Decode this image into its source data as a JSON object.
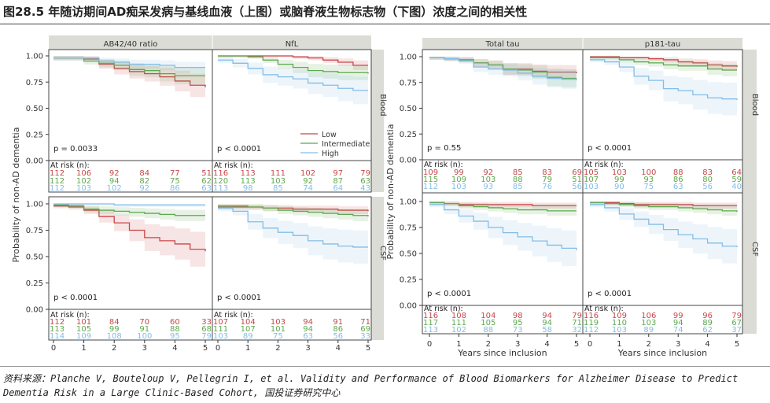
{
  "title": "图28.5 年随访期间AD痴呆发病与基线血液（上图）或脑脊液生物标志物（下图）浓度之间的相关性",
  "source": "资料来源：Planche V, Bouteloup V, Pellegrin I, et al. Validity and Performance of Blood Biomarkers for Alzheimer Disease to Predict Dementia Risk in a Large Clinic-Based Cohort, 国投证券研究中心",
  "colors": {
    "Low": "#c8474a",
    "Intermediate": "#5ea84e",
    "High": "#83bde6"
  },
  "common": {
    "ylabel": "Probability of non-AD dementia",
    "xlabel": "Years since inclusion",
    "at_risk_label": "At risk (n):",
    "yticks": [
      "0.00",
      "0.25",
      "0.50",
      "0.75",
      "1.00"
    ],
    "xticks": [
      "0",
      "1",
      "2",
      "3",
      "4",
      "5"
    ],
    "legend": [
      "Low",
      "Intermediate",
      "High"
    ],
    "row_strips": [
      "Blood",
      "CSF"
    ]
  },
  "chart_data": [
    {
      "type": "line",
      "title": "AB42/40 ratio",
      "sample": "Blood",
      "p": "p = 0.0033",
      "x": [
        0,
        0.5,
        1,
        1.5,
        2,
        2.5,
        3,
        3.5,
        4,
        4.5,
        5
      ],
      "ylim": [
        0,
        1
      ],
      "series": [
        {
          "name": "Low",
          "values": [
            0.98,
            0.98,
            0.97,
            0.92,
            0.88,
            0.85,
            0.83,
            0.8,
            0.76,
            0.72,
            0.7
          ],
          "at_risk": [
            "112",
            "106",
            "92",
            "84",
            "77",
            "51"
          ]
        },
        {
          "name": "Intermediate",
          "values": [
            0.98,
            0.98,
            0.95,
            0.93,
            0.91,
            0.87,
            0.86,
            0.83,
            0.81,
            0.81,
            0.81
          ],
          "at_risk": [
            "112",
            "102",
            "94",
            "82",
            "75",
            "62"
          ]
        },
        {
          "name": "High",
          "values": [
            0.98,
            0.98,
            0.98,
            0.95,
            0.94,
            0.92,
            0.92,
            0.91,
            0.89,
            0.89,
            0.89
          ],
          "at_risk": [
            "112",
            "103",
            "102",
            "92",
            "86",
            "63"
          ]
        }
      ]
    },
    {
      "type": "line",
      "title": "NfL",
      "sample": "Blood",
      "p": "p < 0.0001",
      "x": [
        0,
        0.5,
        1,
        1.5,
        2,
        2.5,
        3,
        3.5,
        4,
        4.5,
        5
      ],
      "ylim": [
        0,
        1
      ],
      "series": [
        {
          "name": "Low",
          "values": [
            1,
            1,
            1,
            1,
            1,
            0.99,
            0.98,
            0.96,
            0.94,
            0.91,
            0.91
          ],
          "at_risk": [
            "116",
            "113",
            "111",
            "102",
            "97",
            "79"
          ]
        },
        {
          "name": "Intermediate",
          "values": [
            1,
            1,
            0.99,
            0.96,
            0.92,
            0.89,
            0.86,
            0.85,
            0.84,
            0.84,
            0.83
          ],
          "at_risk": [
            "120",
            "113",
            "103",
            "92",
            "87",
            "63"
          ]
        },
        {
          "name": "High",
          "values": [
            0.96,
            0.93,
            0.88,
            0.82,
            0.8,
            0.78,
            0.74,
            0.72,
            0.69,
            0.67,
            0.67
          ],
          "at_risk": [
            "113",
            "98",
            "85",
            "74",
            "64",
            "43"
          ]
        }
      ]
    },
    {
      "type": "line",
      "title": "Total tau",
      "sample": "Blood",
      "p": "p = 0.55",
      "x": [
        0,
        0.5,
        1,
        1.5,
        2,
        2.5,
        3,
        3.5,
        4,
        4.5,
        5
      ],
      "ylim": [
        0,
        1
      ],
      "series": [
        {
          "name": "Low",
          "values": [
            0.99,
            0.98,
            0.97,
            0.94,
            0.92,
            0.88,
            0.88,
            0.86,
            0.85,
            0.85,
            0.84
          ],
          "at_risk": [
            "109",
            "99",
            "92",
            "85",
            "83",
            "69"
          ]
        },
        {
          "name": "Intermediate",
          "values": [
            0.99,
            0.98,
            0.97,
            0.94,
            0.92,
            0.88,
            0.87,
            0.85,
            0.8,
            0.79,
            0.79
          ],
          "at_risk": [
            "115",
            "109",
            "103",
            "88",
            "79",
            "51"
          ]
        },
        {
          "name": "High",
          "values": [
            0.99,
            0.98,
            0.96,
            0.9,
            0.88,
            0.87,
            0.84,
            0.81,
            0.79,
            0.78,
            0.77
          ],
          "at_risk": [
            "112",
            "103",
            "93",
            "85",
            "76",
            "56"
          ]
        }
      ]
    },
    {
      "type": "line",
      "title": "p181-tau",
      "sample": "Blood",
      "p": "p < 0.0001",
      "x": [
        0,
        0.5,
        1,
        1.5,
        2,
        2.5,
        3,
        3.5,
        4,
        4.5,
        5
      ],
      "ylim": [
        0,
        1
      ],
      "series": [
        {
          "name": "Low",
          "values": [
            1,
            1,
            0.99,
            0.99,
            0.98,
            0.97,
            0.95,
            0.94,
            0.92,
            0.91,
            0.9
          ],
          "at_risk": [
            "105",
            "103",
            "100",
            "88",
            "83",
            "64"
          ]
        },
        {
          "name": "Intermediate",
          "values": [
            0.99,
            0.99,
            0.97,
            0.95,
            0.94,
            0.92,
            0.91,
            0.91,
            0.88,
            0.87,
            0.87
          ],
          "at_risk": [
            "107",
            "99",
            "93",
            "86",
            "80",
            "59"
          ]
        },
        {
          "name": "High",
          "values": [
            0.97,
            0.95,
            0.9,
            0.81,
            0.77,
            0.69,
            0.67,
            0.63,
            0.6,
            0.59,
            0.58
          ],
          "at_risk": [
            "103",
            "90",
            "75",
            "63",
            "56",
            "40"
          ]
        }
      ]
    },
    {
      "type": "line",
      "title": "AB42/40 ratio",
      "sample": "CSF",
      "p": "p < 0.0001",
      "x": [
        0,
        0.5,
        1,
        1.5,
        2,
        2.5,
        3,
        3.5,
        4,
        4.5,
        5
      ],
      "ylim": [
        0,
        1
      ],
      "series": [
        {
          "name": "Low",
          "values": [
            0.98,
            0.97,
            0.94,
            0.88,
            0.82,
            0.75,
            0.68,
            0.65,
            0.62,
            0.57,
            0.55
          ],
          "at_risk": [
            "112",
            "101",
            "84",
            "70",
            "60",
            "33"
          ]
        },
        {
          "name": "Intermediate",
          "values": [
            0.99,
            0.98,
            0.95,
            0.94,
            0.93,
            0.92,
            0.91,
            0.9,
            0.89,
            0.89,
            0.89
          ],
          "at_risk": [
            "113",
            "105",
            "99",
            "91",
            "88",
            "68"
          ]
        },
        {
          "name": "High",
          "values": [
            1,
            1,
            1,
            1,
            0.99,
            0.99,
            0.99,
            0.99,
            0.99,
            0.99,
            0.99
          ],
          "at_risk": [
            "114",
            "109",
            "108",
            "100",
            "95",
            "79"
          ]
        }
      ]
    },
    {
      "type": "line",
      "title": "NfL",
      "sample": "CSF",
      "p": "p < 0.0001",
      "x": [
        0,
        0.5,
        1,
        1.5,
        2,
        2.5,
        3,
        3.5,
        4,
        4.5,
        5
      ],
      "ylim": [
        0,
        1
      ],
      "series": [
        {
          "name": "Low",
          "values": [
            0.97,
            0.97,
            0.97,
            0.96,
            0.96,
            0.95,
            0.95,
            0.95,
            0.94,
            0.94,
            0.93
          ],
          "at_risk": [
            "107",
            "104",
            "103",
            "94",
            "91",
            "71"
          ]
        },
        {
          "name": "Intermediate",
          "values": [
            0.98,
            0.98,
            0.97,
            0.96,
            0.94,
            0.93,
            0.92,
            0.91,
            0.9,
            0.89,
            0.88
          ],
          "at_risk": [
            "111",
            "107",
            "101",
            "94",
            "86",
            "69"
          ]
        },
        {
          "name": "High",
          "values": [
            0.96,
            0.93,
            0.83,
            0.77,
            0.73,
            0.7,
            0.65,
            0.62,
            0.6,
            0.59,
            0.59
          ],
          "at_risk": [
            "103",
            "89",
            "75",
            "63",
            "56",
            "33"
          ]
        }
      ]
    },
    {
      "type": "line",
      "title": "Total tau",
      "sample": "CSF",
      "p": "p < 0.0001",
      "x": [
        0,
        0.5,
        1,
        1.5,
        2,
        2.5,
        3,
        3.5,
        4,
        4.5,
        5
      ],
      "ylim": [
        0,
        1
      ],
      "series": [
        {
          "name": "Low",
          "values": [
            0.99,
            0.98,
            0.97,
            0.97,
            0.97,
            0.97,
            0.97,
            0.96,
            0.96,
            0.96,
            0.96
          ],
          "at_risk": [
            "116",
            "108",
            "104",
            "98",
            "94",
            "79"
          ]
        },
        {
          "name": "Intermediate",
          "values": [
            0.99,
            0.98,
            0.96,
            0.95,
            0.94,
            0.93,
            0.92,
            0.92,
            0.91,
            0.91,
            0.91
          ],
          "at_risk": [
            "117",
            "111",
            "105",
            "95",
            "94",
            "71"
          ]
        },
        {
          "name": "High",
          "values": [
            0.97,
            0.92,
            0.86,
            0.81,
            0.75,
            0.7,
            0.66,
            0.62,
            0.58,
            0.55,
            0.53
          ],
          "at_risk": [
            "113",
            "102",
            "88",
            "73",
            "58",
            "32"
          ]
        }
      ]
    },
    {
      "type": "line",
      "title": "p181-tau",
      "sample": "CSF",
      "p": "p < 0.0001",
      "x": [
        0,
        0.5,
        1,
        1.5,
        2,
        2.5,
        3,
        3.5,
        4,
        4.5,
        5
      ],
      "ylim": [
        0,
        1
      ],
      "series": [
        {
          "name": "Low",
          "values": [
            0.99,
            0.99,
            0.98,
            0.97,
            0.97,
            0.97,
            0.97,
            0.96,
            0.96,
            0.96,
            0.96
          ],
          "at_risk": [
            "116",
            "109",
            "106",
            "99",
            "96",
            "79"
          ]
        },
        {
          "name": "Intermediate",
          "values": [
            0.99,
            0.98,
            0.97,
            0.96,
            0.95,
            0.95,
            0.94,
            0.93,
            0.92,
            0.91,
            0.9
          ],
          "at_risk": [
            "119",
            "110",
            "103",
            "94",
            "89",
            "67"
          ]
        },
        {
          "name": "High",
          "values": [
            0.97,
            0.94,
            0.88,
            0.83,
            0.78,
            0.73,
            0.68,
            0.64,
            0.6,
            0.57,
            0.56
          ],
          "at_risk": [
            "112",
            "103",
            "89",
            "74",
            "62",
            "37"
          ]
        }
      ]
    }
  ]
}
